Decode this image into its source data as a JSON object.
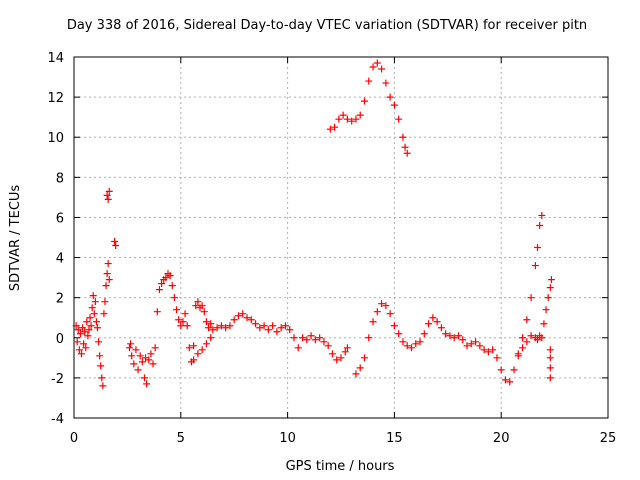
{
  "chart_data": {
    "type": "scatter",
    "title": "Day 338 of 2016, Sidereal Day-to-day VTEC variation (SDTVAR) for receiver pitn",
    "xlabel": "GPS time / hours",
    "ylabel": "SDTVAR / TECUs",
    "xlim": [
      0,
      25
    ],
    "ylim": [
      -4,
      14
    ],
    "x_ticks": [
      0,
      5,
      10,
      15,
      20,
      25
    ],
    "y_ticks": [
      -4,
      -2,
      0,
      2,
      4,
      6,
      8,
      10,
      12,
      14
    ],
    "grid": true,
    "marker": "+",
    "series": [
      {
        "name": "SDTVAR",
        "color": "#ff0000",
        "points": [
          [
            0.1,
            0.6
          ],
          [
            0.15,
            -0.2
          ],
          [
            0.2,
            0.4
          ],
          [
            0.25,
            -0.6
          ],
          [
            0.3,
            0.2
          ],
          [
            0.35,
            -0.8
          ],
          [
            0.4,
            0.5
          ],
          [
            0.45,
            -0.3
          ],
          [
            0.5,
            0.3
          ],
          [
            0.55,
            -0.5
          ],
          [
            0.6,
            0.8
          ],
          [
            0.65,
            0.1
          ],
          [
            0.7,
            0.4
          ],
          [
            0.75,
            1.0
          ],
          [
            0.8,
            0.6
          ],
          [
            0.85,
            1.5
          ],
          [
            0.9,
            2.1
          ],
          [
            0.95,
            1.2
          ],
          [
            1.0,
            1.8
          ],
          [
            1.05,
            0.8
          ],
          [
            1.1,
            0.5
          ],
          [
            1.15,
            -0.2
          ],
          [
            1.2,
            -0.9
          ],
          [
            1.25,
            -1.4
          ],
          [
            1.3,
            -2.0
          ],
          [
            1.35,
            -2.4
          ],
          [
            1.4,
            1.2
          ],
          [
            1.45,
            1.8
          ],
          [
            1.5,
            2.6
          ],
          [
            1.55,
            3.2
          ],
          [
            1.6,
            3.7
          ],
          [
            1.65,
            2.9
          ],
          [
            1.55,
            7.1
          ],
          [
            1.6,
            6.9
          ],
          [
            1.65,
            7.3
          ],
          [
            1.9,
            4.8
          ],
          [
            1.95,
            4.6
          ],
          [
            2.6,
            -0.5
          ],
          [
            2.65,
            -0.3
          ],
          [
            2.7,
            -0.9
          ],
          [
            2.8,
            -1.3
          ],
          [
            2.9,
            -0.6
          ],
          [
            3.0,
            -1.6
          ],
          [
            3.1,
            -0.9
          ],
          [
            3.2,
            -1.2
          ],
          [
            3.3,
            -2.0
          ],
          [
            3.35,
            -1.0
          ],
          [
            3.4,
            -2.3
          ],
          [
            3.5,
            -1.1
          ],
          [
            3.6,
            -0.8
          ],
          [
            3.7,
            -1.3
          ],
          [
            3.8,
            -0.5
          ],
          [
            3.9,
            1.3
          ],
          [
            4.0,
            2.4
          ],
          [
            4.1,
            2.7
          ],
          [
            4.2,
            2.9
          ],
          [
            4.3,
            3.0
          ],
          [
            4.4,
            3.2
          ],
          [
            4.5,
            3.1
          ],
          [
            4.6,
            2.6
          ],
          [
            4.7,
            2.0
          ],
          [
            4.8,
            1.4
          ],
          [
            4.9,
            0.9
          ],
          [
            5.0,
            0.6
          ],
          [
            5.1,
            0.8
          ],
          [
            5.2,
            1.2
          ],
          [
            5.3,
            0.6
          ],
          [
            5.4,
            -0.5
          ],
          [
            5.5,
            -1.2
          ],
          [
            5.6,
            -1.1
          ],
          [
            5.7,
            1.6
          ],
          [
            5.8,
            1.8
          ],
          [
            5.9,
            1.5
          ],
          [
            6.0,
            1.6
          ],
          [
            6.1,
            1.3
          ],
          [
            6.2,
            0.8
          ],
          [
            6.3,
            0.5
          ],
          [
            6.4,
            0.7
          ],
          [
            6.5,
            0.4
          ],
          [
            6.7,
            0.5
          ],
          [
            6.9,
            0.6
          ],
          [
            7.1,
            0.5
          ],
          [
            7.3,
            0.6
          ],
          [
            7.5,
            0.9
          ],
          [
            7.7,
            1.1
          ],
          [
            7.9,
            1.2
          ],
          [
            8.1,
            1.0
          ],
          [
            8.3,
            0.9
          ],
          [
            8.5,
            0.7
          ],
          [
            8.7,
            0.5
          ],
          [
            8.9,
            0.6
          ],
          [
            9.1,
            0.4
          ],
          [
            9.3,
            0.6
          ],
          [
            9.5,
            0.3
          ],
          [
            9.7,
            0.5
          ],
          [
            9.9,
            0.6
          ],
          [
            10.1,
            0.4
          ],
          [
            10.3,
            0.0
          ],
          [
            10.5,
            -0.5
          ],
          [
            10.7,
            0.0
          ],
          [
            10.9,
            -0.1
          ],
          [
            11.1,
            0.1
          ],
          [
            11.3,
            -0.1
          ],
          [
            11.5,
            0.0
          ],
          [
            11.7,
            -0.2
          ],
          [
            11.9,
            -0.4
          ],
          [
            12.1,
            -0.8
          ],
          [
            12.3,
            -1.1
          ],
          [
            12.5,
            -1.0
          ],
          [
            12.7,
            -0.7
          ],
          [
            12.8,
            -0.5
          ],
          [
            5.6,
            -0.4
          ],
          [
            5.8,
            -0.8
          ],
          [
            6.0,
            -0.6
          ],
          [
            6.2,
            -0.3
          ],
          [
            6.4,
            0.0
          ],
          [
            13.2,
            -1.8
          ],
          [
            13.4,
            -1.5
          ],
          [
            13.6,
            -1.0
          ],
          [
            13.8,
            0.0
          ],
          [
            14.0,
            0.8
          ],
          [
            14.2,
            1.3
          ],
          [
            14.4,
            1.7
          ],
          [
            14.6,
            1.6
          ],
          [
            14.8,
            1.2
          ],
          [
            15.0,
            0.6
          ],
          [
            15.2,
            0.2
          ],
          [
            15.4,
            -0.2
          ],
          [
            15.6,
            -0.4
          ],
          [
            15.8,
            -0.5
          ],
          [
            16.0,
            -0.3
          ],
          [
            16.2,
            -0.2
          ],
          [
            16.4,
            0.2
          ],
          [
            16.6,
            0.7
          ],
          [
            16.8,
            1.0
          ],
          [
            17.0,
            0.8
          ],
          [
            17.2,
            0.5
          ],
          [
            17.4,
            0.2
          ],
          [
            17.6,
            0.1
          ],
          [
            17.8,
            0.0
          ],
          [
            18.0,
            0.1
          ],
          [
            18.2,
            -0.1
          ],
          [
            18.4,
            -0.4
          ],
          [
            18.6,
            -0.3
          ],
          [
            18.8,
            -0.2
          ],
          [
            19.0,
            -0.4
          ],
          [
            19.2,
            -0.6
          ],
          [
            19.4,
            -0.7
          ],
          [
            19.6,
            -0.6
          ],
          [
            19.8,
            -1.0
          ],
          [
            20.0,
            -1.6
          ],
          [
            20.2,
            -2.1
          ],
          [
            20.4,
            -2.2
          ],
          [
            20.6,
            -1.6
          ],
          [
            20.8,
            -0.8
          ],
          [
            21.0,
            0.0
          ],
          [
            21.2,
            0.9
          ],
          [
            21.4,
            2.0
          ],
          [
            21.6,
            3.6
          ],
          [
            21.7,
            4.5
          ],
          [
            21.8,
            5.6
          ],
          [
            21.9,
            6.1
          ],
          [
            21.6,
            0.0
          ],
          [
            21.7,
            -0.1
          ],
          [
            21.8,
            0.1
          ],
          [
            21.9,
            0.0
          ],
          [
            22.0,
            0.7
          ],
          [
            22.1,
            1.4
          ],
          [
            22.2,
            2.0
          ],
          [
            22.3,
            2.5
          ],
          [
            22.35,
            2.9
          ],
          [
            20.8,
            -0.9
          ],
          [
            21.0,
            -0.5
          ],
          [
            21.2,
            -0.2
          ],
          [
            21.4,
            0.1
          ],
          [
            22.3,
            -0.6
          ],
          [
            22.3,
            -1.0
          ],
          [
            22.3,
            -1.5
          ],
          [
            22.3,
            -2.0
          ],
          [
            12.0,
            10.4
          ],
          [
            12.2,
            10.5
          ],
          [
            12.4,
            10.9
          ],
          [
            12.6,
            11.1
          ],
          [
            12.8,
            10.9
          ],
          [
            13.0,
            10.8
          ],
          [
            13.2,
            10.9
          ],
          [
            13.4,
            11.1
          ],
          [
            13.6,
            11.8
          ],
          [
            13.8,
            12.8
          ],
          [
            14.0,
            13.5
          ],
          [
            14.2,
            13.7
          ],
          [
            14.4,
            13.4
          ],
          [
            14.6,
            12.7
          ],
          [
            14.8,
            12.0
          ],
          [
            15.0,
            11.6
          ],
          [
            15.2,
            10.9
          ],
          [
            15.4,
            10.0
          ],
          [
            15.5,
            9.5
          ],
          [
            15.6,
            9.2
          ]
        ]
      }
    ]
  }
}
